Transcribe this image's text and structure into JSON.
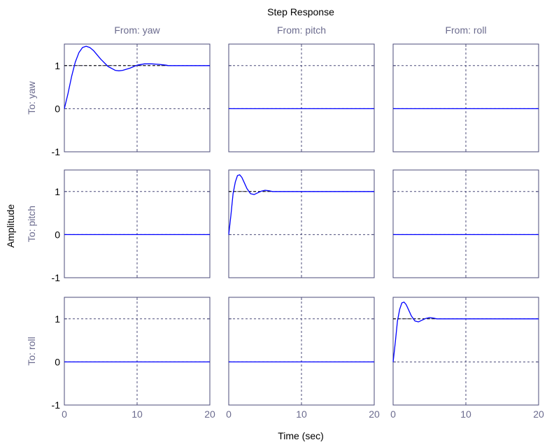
{
  "chart_data": {
    "type": "line",
    "title": "Step Response",
    "xlabel": "Time (sec)",
    "ylabel": "Amplitude",
    "inputs": [
      "From: yaw",
      "From: pitch",
      "From: roll"
    ],
    "outputs": [
      "To: yaw",
      "To: pitch",
      "To: roll"
    ],
    "xlim": [
      0,
      20
    ],
    "ylim": [
      -1,
      1.5
    ],
    "xticks": [
      0,
      10,
      20
    ],
    "yticks": [
      -1,
      0,
      1
    ],
    "grid": true,
    "reference_level": 1,
    "colors": {
      "response": "#0000ff",
      "axis": "#4b4b7a",
      "grid": "#4b4b7a",
      "text": "#6b6b8e",
      "reference": "#000000"
    },
    "series": [
      {
        "row": 0,
        "col": 0,
        "x": [
          0,
          0.5,
          1,
          1.5,
          2,
          2.5,
          3,
          3.5,
          4,
          5,
          6,
          7,
          7.5,
          8,
          9,
          10,
          11,
          12,
          13,
          14,
          14.3,
          20
        ],
        "y": [
          0,
          0.35,
          0.75,
          1.08,
          1.3,
          1.42,
          1.45,
          1.42,
          1.35,
          1.15,
          0.98,
          0.89,
          0.88,
          0.89,
          0.94,
          1.01,
          1.04,
          1.04,
          1.03,
          1.01,
          1.0,
          1.0
        ]
      },
      {
        "row": 0,
        "col": 1,
        "x": [
          0,
          20
        ],
        "y": [
          0,
          0
        ]
      },
      {
        "row": 0,
        "col": 2,
        "x": [
          0,
          20
        ],
        "y": [
          0,
          0
        ]
      },
      {
        "row": 1,
        "col": 0,
        "x": [
          0,
          20
        ],
        "y": [
          0,
          0
        ]
      },
      {
        "row": 1,
        "col": 1,
        "x": [
          0,
          0.3,
          0.6,
          0.9,
          1.2,
          1.5,
          1.8,
          2.1,
          2.5,
          3,
          3.5,
          4,
          4.5,
          5,
          5.5,
          6,
          20
        ],
        "y": [
          0,
          0.45,
          0.95,
          1.22,
          1.37,
          1.39,
          1.33,
          1.22,
          1.07,
          0.95,
          0.93,
          0.97,
          1.01,
          1.03,
          1.02,
          1.0,
          1.0
        ]
      },
      {
        "row": 1,
        "col": 2,
        "x": [
          0,
          20
        ],
        "y": [
          0,
          0
        ]
      },
      {
        "row": 2,
        "col": 0,
        "x": [
          0,
          20
        ],
        "y": [
          0,
          0
        ]
      },
      {
        "row": 2,
        "col": 1,
        "x": [
          0,
          20
        ],
        "y": [
          0,
          0
        ]
      },
      {
        "row": 2,
        "col": 2,
        "x": [
          0,
          0.3,
          0.6,
          0.9,
          1.2,
          1.5,
          1.8,
          2.1,
          2.5,
          3,
          3.5,
          4,
          4.5,
          5,
          5.5,
          6,
          20
        ],
        "y": [
          0,
          0.45,
          0.95,
          1.22,
          1.37,
          1.39,
          1.33,
          1.22,
          1.07,
          0.95,
          0.93,
          0.97,
          1.01,
          1.03,
          1.02,
          1.0,
          1.0
        ]
      }
    ],
    "reference_lines": [
      {
        "row": 0,
        "col": 0,
        "x": [
          0,
          14.3
        ],
        "y": [
          1,
          1
        ]
      },
      {
        "row": 1,
        "col": 1,
        "x": [
          0,
          6
        ],
        "y": [
          1,
          1
        ]
      },
      {
        "row": 2,
        "col": 2,
        "x": [
          0,
          6
        ],
        "y": [
          1,
          1
        ]
      }
    ]
  }
}
